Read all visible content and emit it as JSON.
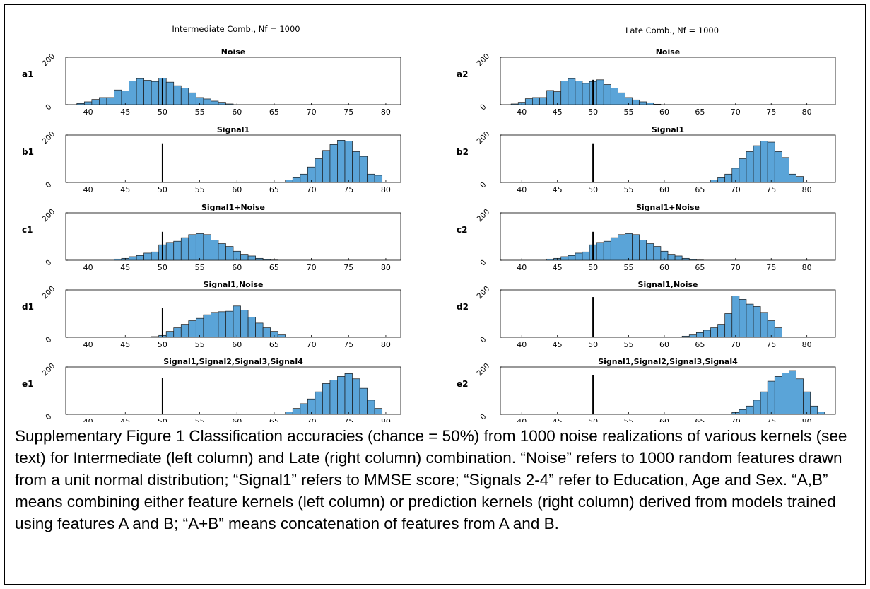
{
  "figure": {
    "column_titles": [
      "Intermediate Comb., Nf = 1000",
      "Late Comb., Nf = 1000"
    ],
    "colors": {
      "bar_fill": "#5aa4d8",
      "bar_edge": "#1a1a1a",
      "axis": "#000000",
      "chance_line": "#000000"
    }
  },
  "chart_data": [
    {
      "type": "bar",
      "panel": "a1",
      "title": "Noise",
      "x_ticks": [
        40,
        45,
        50,
        55,
        60,
        65,
        70,
        75,
        80
      ],
      "y_ticks": [
        0,
        200
      ],
      "xlim": [
        37,
        82
      ],
      "ylim": [
        0,
        200
      ],
      "chance_line_x": 50,
      "chance_line_height": 110,
      "bin_width": 1,
      "bins": [
        39,
        40,
        41,
        42,
        43,
        44,
        45,
        46,
        47,
        48,
        49,
        50,
        51,
        52,
        53,
        54,
        55,
        56,
        57,
        58,
        59
      ],
      "values": [
        5,
        12,
        22,
        30,
        30,
        62,
        58,
        100,
        110,
        103,
        98,
        112,
        95,
        80,
        70,
        50,
        30,
        24,
        15,
        10,
        3
      ]
    },
    {
      "type": "bar",
      "panel": "b1",
      "title": "Signal1",
      "x_ticks": [
        40,
        45,
        50,
        55,
        60,
        65,
        70,
        75,
        80
      ],
      "y_ticks": [
        0,
        200
      ],
      "xlim": [
        37,
        82
      ],
      "ylim": [
        0,
        200
      ],
      "chance_line_x": 50,
      "chance_line_height": 165,
      "bin_width": 1,
      "bins": [
        67,
        68,
        69,
        70,
        71,
        72,
        73,
        74,
        75,
        76,
        77,
        78,
        79
      ],
      "values": [
        10,
        20,
        35,
        65,
        100,
        135,
        160,
        178,
        175,
        130,
        110,
        35,
        30
      ]
    },
    {
      "type": "bar",
      "panel": "c1",
      "title": "Signal1+Noise",
      "x_ticks": [
        40,
        45,
        50,
        55,
        60,
        65,
        70,
        75,
        80
      ],
      "y_ticks": [
        0,
        200
      ],
      "xlim": [
        37,
        82
      ],
      "ylim": [
        0,
        200
      ],
      "chance_line_x": 50,
      "chance_line_height": 120,
      "bin_width": 1,
      "bins": [
        44,
        45,
        46,
        47,
        48,
        49,
        50,
        51,
        52,
        53,
        54,
        55,
        56,
        57,
        58,
        59,
        60,
        61,
        62,
        63,
        64,
        65
      ],
      "values": [
        5,
        8,
        15,
        20,
        30,
        35,
        65,
        75,
        80,
        95,
        108,
        112,
        108,
        85,
        70,
        58,
        38,
        25,
        18,
        8,
        3,
        1
      ]
    },
    {
      "type": "bar",
      "panel": "d1",
      "title": "Signal1,Noise",
      "x_ticks": [
        40,
        45,
        50,
        55,
        60,
        65,
        70,
        75,
        80
      ],
      "y_ticks": [
        0,
        200
      ],
      "xlim": [
        37,
        82
      ],
      "ylim": [
        0,
        200
      ],
      "chance_line_x": 50,
      "chance_line_height": 125,
      "bin_width": 1,
      "bins": [
        49,
        50,
        51,
        52,
        53,
        54,
        55,
        56,
        57,
        58,
        59,
        60,
        61,
        62,
        63,
        64,
        65,
        66
      ],
      "values": [
        3,
        8,
        25,
        40,
        55,
        70,
        80,
        95,
        105,
        108,
        110,
        132,
        115,
        85,
        60,
        40,
        25,
        10
      ]
    },
    {
      "type": "bar",
      "panel": "e1",
      "title": "Signal1,Signal2,Signal3,Signal4",
      "x_ticks": [
        40,
        45,
        50,
        55,
        60,
        65,
        70,
        75,
        80
      ],
      "y_ticks": [
        0,
        200
      ],
      "xlim": [
        37,
        82
      ],
      "ylim": [
        0,
        200
      ],
      "chance_line_x": 50,
      "chance_line_height": 155,
      "bin_width": 1,
      "bins": [
        67,
        68,
        69,
        70,
        71,
        72,
        73,
        74,
        75,
        76,
        77,
        78,
        79
      ],
      "values": [
        10,
        25,
        45,
        65,
        95,
        130,
        145,
        160,
        172,
        150,
        110,
        60,
        25
      ]
    },
    {
      "type": "bar",
      "panel": "a2",
      "title": "Noise",
      "x_ticks": [
        40,
        45,
        50,
        55,
        60,
        65,
        70,
        75,
        80
      ],
      "y_ticks": [
        0,
        200
      ],
      "xlim": [
        37,
        84
      ],
      "ylim": [
        0,
        200
      ],
      "chance_line_x": 50,
      "chance_line_height": 105,
      "bin_width": 1,
      "bins": [
        39,
        40,
        41,
        42,
        43,
        44,
        45,
        46,
        47,
        48,
        49,
        50,
        51,
        52,
        53,
        54,
        55,
        56,
        57,
        58,
        59
      ],
      "values": [
        3,
        10,
        25,
        30,
        30,
        60,
        55,
        100,
        110,
        100,
        90,
        98,
        105,
        85,
        70,
        50,
        30,
        20,
        12,
        8,
        2
      ]
    },
    {
      "type": "bar",
      "panel": "b2",
      "title": "Signal1",
      "x_ticks": [
        40,
        45,
        50,
        55,
        60,
        65,
        70,
        75,
        80
      ],
      "y_ticks": [
        0,
        200
      ],
      "xlim": [
        37,
        84
      ],
      "ylim": [
        0,
        200
      ],
      "chance_line_x": 50,
      "chance_line_height": 165,
      "bin_width": 1,
      "bins": [
        67,
        68,
        69,
        70,
        71,
        72,
        73,
        74,
        75,
        76,
        77,
        78,
        79
      ],
      "values": [
        10,
        20,
        35,
        60,
        100,
        130,
        155,
        175,
        170,
        130,
        105,
        35,
        25
      ]
    },
    {
      "type": "bar",
      "panel": "c2",
      "title": "Signal1+Noise",
      "x_ticks": [
        40,
        45,
        50,
        55,
        60,
        65,
        70,
        75,
        80
      ],
      "y_ticks": [
        0,
        200
      ],
      "xlim": [
        37,
        84
      ],
      "ylim": [
        0,
        200
      ],
      "chance_line_x": 50,
      "chance_line_height": 120,
      "bin_width": 1,
      "bins": [
        44,
        45,
        46,
        47,
        48,
        49,
        50,
        51,
        52,
        53,
        54,
        55,
        56,
        57,
        58,
        59,
        60,
        61,
        62,
        63,
        64,
        65
      ],
      "values": [
        5,
        8,
        15,
        20,
        30,
        35,
        65,
        75,
        80,
        95,
        108,
        112,
        108,
        85,
        70,
        58,
        38,
        25,
        18,
        8,
        3,
        1
      ]
    },
    {
      "type": "bar",
      "panel": "d2",
      "title": "Signal1,Noise",
      "x_ticks": [
        40,
        45,
        50,
        55,
        60,
        65,
        70,
        75,
        80
      ],
      "y_ticks": [
        0,
        200
      ],
      "xlim": [
        37,
        84
      ],
      "ylim": [
        0,
        200
      ],
      "chance_line_x": 50,
      "chance_line_height": 170,
      "bin_width": 1,
      "bins": [
        63,
        64,
        65,
        66,
        67,
        68,
        69,
        70,
        71,
        72,
        73,
        74,
        75,
        76
      ],
      "values": [
        5,
        10,
        20,
        30,
        40,
        55,
        100,
        175,
        160,
        140,
        130,
        105,
        70,
        40
      ]
    },
    {
      "type": "bar",
      "panel": "e2",
      "title": "Signal1,Signal2,Signal3,Signal4",
      "x_ticks": [
        40,
        45,
        50,
        55,
        60,
        65,
        70,
        75,
        80
      ],
      "y_ticks": [
        0,
        200
      ],
      "xlim": [
        37,
        84
      ],
      "ylim": [
        0,
        200
      ],
      "chance_line_x": 50,
      "chance_line_height": 165,
      "bin_width": 1,
      "bins": [
        70,
        71,
        72,
        73,
        74,
        75,
        76,
        77,
        78,
        79,
        80,
        81,
        82
      ],
      "values": [
        8,
        20,
        35,
        60,
        95,
        140,
        160,
        175,
        185,
        150,
        95,
        35,
        10
      ]
    }
  ],
  "caption": "Supplementary Figure 1 Classification accuracies (chance = 50%) from 1000 noise realizations of various kernels (see text) for Intermediate (left column) and Late (right column) combination. “Noise” refers to 1000 random features drawn from a unit normal distribution; “Signal1” refers to MMSE score; “Signals 2-4” refer to Education, Age and Sex. “A,B” means combining either feature kernels (left column) or prediction kernels (right column) derived from models trained using features A and B; “A+B” means concatenation of features from A and B."
}
